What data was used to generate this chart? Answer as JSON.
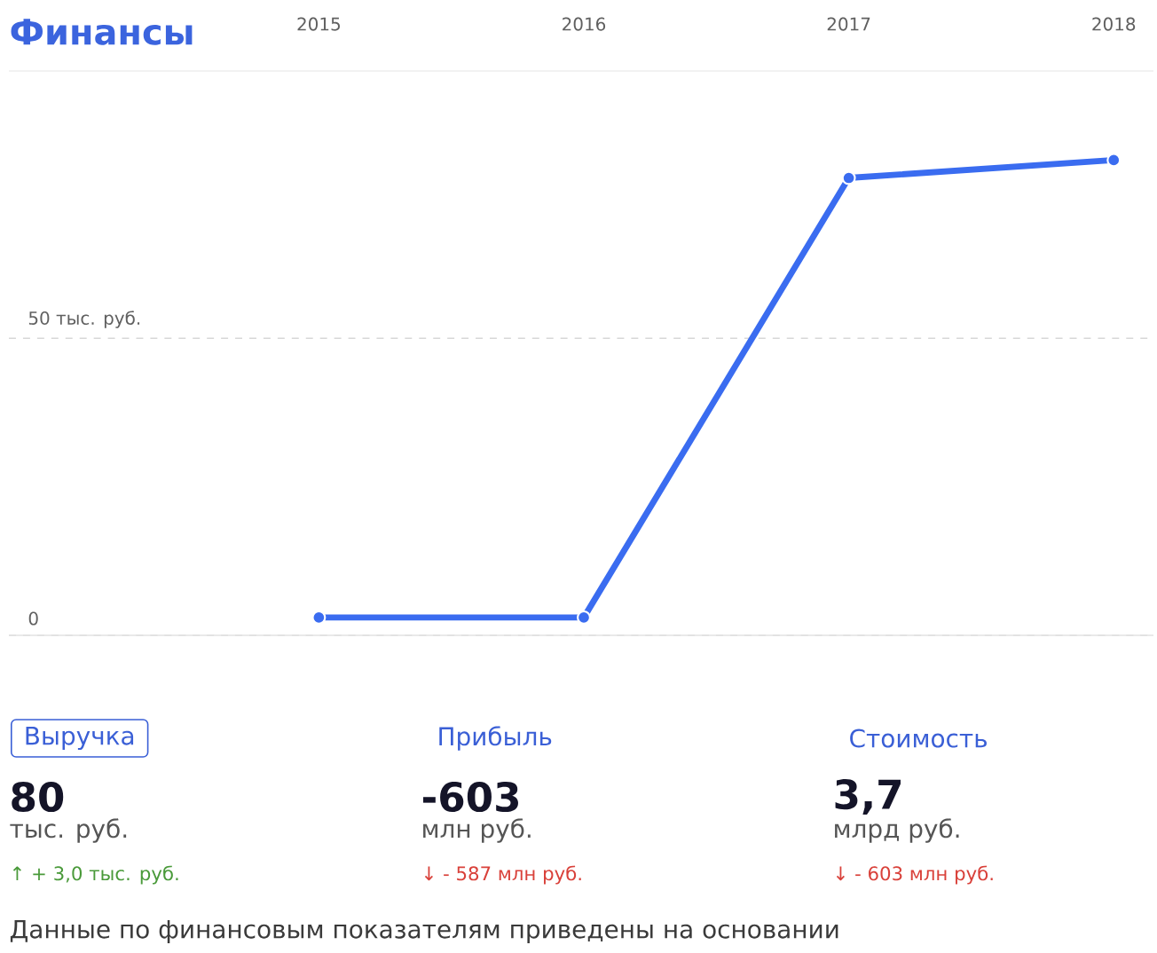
{
  "chart_data": {
    "type": "line",
    "title": "Финансы",
    "categories": [
      "2015",
      "2016",
      "2017",
      "2018"
    ],
    "series": [
      {
        "color": "#3a6cf0",
        "values": [
          3,
          3,
          77,
          80
        ]
      }
    ],
    "ylim": [
      0,
      95
    ],
    "yticks": [
      0,
      {
        "value": 50,
        "label": "50 тыс. руб."
      }
    ],
    "grid": "y",
    "marker": "circle",
    "line_style": "solid",
    "annotations": [
      "Выручка",
      "80",
      "тыс. руб.",
      "↑ + 3,0 тыс. руб.",
      "Прибыль",
      "-603",
      "млн руб.",
      "↓ - 587 млн руб.",
      "Стоимость",
      "3,7",
      "млрд руб.",
      "↓ - 603 млн руб.",
      "Данные по финансовым показателям приведены на основании"
    ]
  }
}
